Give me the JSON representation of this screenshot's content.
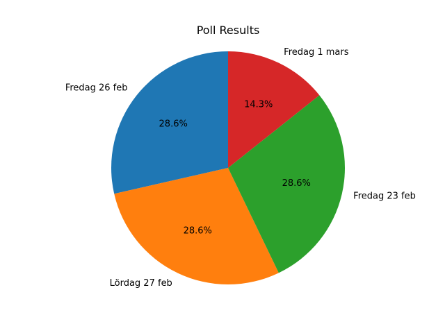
{
  "chart_data": {
    "type": "pie",
    "title": "Poll Results",
    "start_angle": 90,
    "direction": "counterclockwise",
    "slices": [
      {
        "label": "Fredag 26 feb",
        "value": 28.6,
        "pct_label": "28.6%",
        "color": "#1f77b4"
      },
      {
        "label": "Lördag 27 feb",
        "value": 28.6,
        "pct_label": "28.6%",
        "color": "#ff7f0e"
      },
      {
        "label": "Fredag 23 feb",
        "value": 28.6,
        "pct_label": "28.6%",
        "color": "#2ca02c"
      },
      {
        "label": "Fredag 1 mars",
        "value": 14.3,
        "pct_label": "14.3%",
        "color": "#d62728"
      }
    ]
  }
}
